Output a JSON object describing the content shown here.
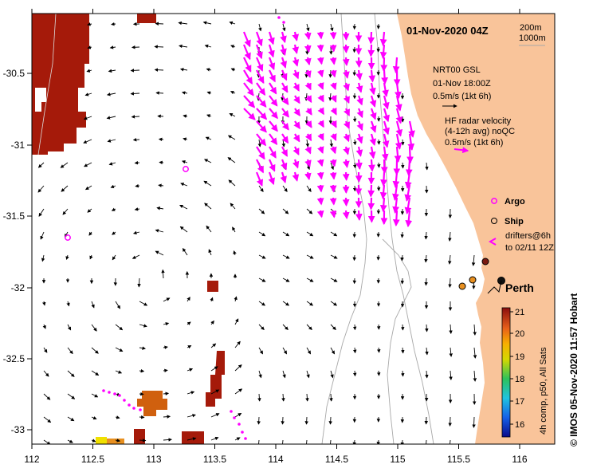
{
  "map": {
    "title": "01-Nov-2020 04Z",
    "place_label": "Perth",
    "credit": "© IMOS 05-Nov-2020 11:57 Hobart",
    "x_ticks": [
      "112",
      "112.5",
      "113",
      "113.5",
      "114",
      "114.5",
      "115",
      "115.5",
      "116"
    ],
    "y_ticks": [
      "-30.5",
      "-31",
      "-31.5",
      "-32",
      "-32.5",
      "-33"
    ],
    "colors": {
      "land": "#f9c49a",
      "sst_hot": "#a51a0a",
      "radar_arrows": "#ff00ff",
      "model_arrows": "#000000",
      "isobaths": "#a8a8a8"
    }
  },
  "legend": {
    "isobaths": [
      "200m",
      "1000m"
    ],
    "model": {
      "name": "NRT00 GSL",
      "time": "01-Nov 18:00Z",
      "scale": "0.5m/s (1kt 6h)"
    },
    "radar": {
      "line1": "HF radar velocity",
      "line2": "(4-12h avg) noQC",
      "scale": "0.5m/s (1kt 6h)"
    },
    "argo_label": "Argo",
    "ship_label": "Ship",
    "drifters_line1": "drifters@6h",
    "drifters_line2": "to 02/11 12Z"
  },
  "colorbar": {
    "ticks": [
      "21",
      "20",
      "19",
      "18",
      "17",
      "16"
    ],
    "caption": "4h comp, p50, All Sats",
    "min": 15.5,
    "max": 21
  }
}
